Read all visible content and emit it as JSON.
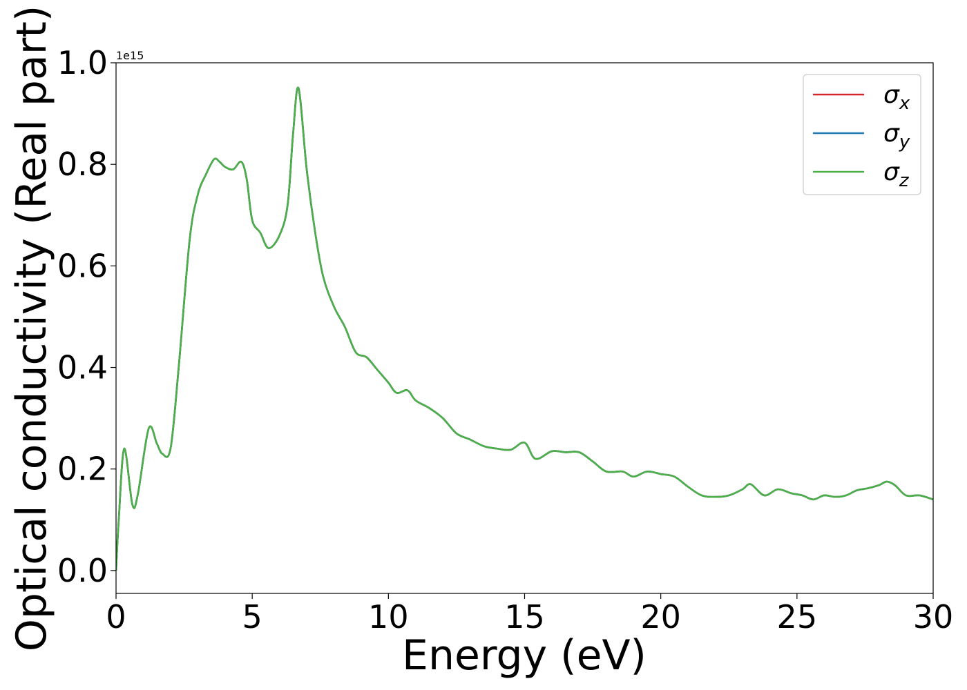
{
  "chart_data": {
    "type": "line",
    "title": "",
    "xlabel": "Energy (eV)",
    "ylabel": "Optical conductivity (Real part)",
    "offset_text": "1e15",
    "xlim": [
      0,
      30
    ],
    "ylim": [
      -0.045,
      1.0
    ],
    "x_ticks": [
      0,
      5,
      10,
      15,
      20,
      25,
      30
    ],
    "y_ticks": [
      0.0,
      0.2,
      0.4,
      0.6,
      0.8,
      1.0
    ],
    "x_tick_labels": [
      "0",
      "5",
      "10",
      "15",
      "20",
      "25",
      "30"
    ],
    "y_tick_labels": [
      "0.0",
      "0.2",
      "0.4",
      "0.6",
      "0.8",
      "1.0"
    ],
    "grid": false,
    "legend_position": "top-right",
    "x": [
      0.0,
      0.1,
      0.3,
      0.6,
      0.8,
      1.2,
      1.5,
      1.7,
      2.0,
      2.3,
      2.7,
      3.0,
      3.3,
      3.6,
      3.8,
      4.0,
      4.3,
      4.6,
      4.8,
      5.0,
      5.3,
      5.6,
      6.0,
      6.3,
      6.5,
      6.7,
      7.0,
      7.3,
      7.6,
      8.0,
      8.4,
      8.8,
      9.2,
      9.6,
      10.0,
      10.3,
      10.7,
      11.0,
      11.5,
      12.0,
      12.5,
      13.0,
      13.5,
      14.0,
      14.5,
      15.0,
      15.4,
      16.0,
      16.5,
      17.0,
      17.5,
      18.0,
      18.6,
      19.0,
      19.5,
      20.0,
      20.5,
      21.0,
      21.5,
      22.0,
      22.5,
      23.0,
      23.3,
      23.8,
      24.3,
      24.8,
      25.2,
      25.6,
      26.0,
      26.4,
      26.8,
      27.2,
      27.6,
      28.0,
      28.3,
      28.6,
      29.0,
      29.5,
      30.0
    ],
    "series": [
      {
        "name": "σx",
        "color": "#d62728",
        "values": [
          0.0,
          0.1,
          0.24,
          0.13,
          0.15,
          0.28,
          0.25,
          0.23,
          0.24,
          0.4,
          0.65,
          0.74,
          0.78,
          0.81,
          0.805,
          0.795,
          0.79,
          0.805,
          0.77,
          0.69,
          0.665,
          0.635,
          0.66,
          0.72,
          0.86,
          0.95,
          0.79,
          0.67,
          0.58,
          0.52,
          0.48,
          0.43,
          0.42,
          0.395,
          0.37,
          0.35,
          0.355,
          0.335,
          0.32,
          0.3,
          0.27,
          0.258,
          0.245,
          0.24,
          0.238,
          0.252,
          0.22,
          0.235,
          0.233,
          0.233,
          0.215,
          0.195,
          0.195,
          0.185,
          0.195,
          0.19,
          0.185,
          0.165,
          0.148,
          0.145,
          0.148,
          0.16,
          0.17,
          0.148,
          0.16,
          0.152,
          0.148,
          0.14,
          0.148,
          0.145,
          0.148,
          0.158,
          0.162,
          0.168,
          0.175,
          0.168,
          0.148,
          0.148,
          0.14
        ]
      },
      {
        "name": "σy",
        "color": "#1f77b4",
        "values": [
          0.0,
          0.1,
          0.24,
          0.13,
          0.15,
          0.28,
          0.25,
          0.23,
          0.24,
          0.4,
          0.65,
          0.74,
          0.78,
          0.81,
          0.805,
          0.795,
          0.79,
          0.805,
          0.77,
          0.69,
          0.665,
          0.635,
          0.66,
          0.72,
          0.86,
          0.95,
          0.79,
          0.67,
          0.58,
          0.52,
          0.48,
          0.43,
          0.42,
          0.395,
          0.37,
          0.35,
          0.355,
          0.335,
          0.32,
          0.3,
          0.27,
          0.258,
          0.245,
          0.24,
          0.238,
          0.252,
          0.22,
          0.235,
          0.233,
          0.233,
          0.215,
          0.195,
          0.195,
          0.185,
          0.195,
          0.19,
          0.185,
          0.165,
          0.148,
          0.145,
          0.148,
          0.16,
          0.17,
          0.148,
          0.16,
          0.152,
          0.148,
          0.14,
          0.148,
          0.145,
          0.148,
          0.158,
          0.162,
          0.168,
          0.175,
          0.168,
          0.148,
          0.148,
          0.14
        ]
      },
      {
        "name": "σz",
        "color": "#4daf4a",
        "values": [
          0.0,
          0.1,
          0.24,
          0.13,
          0.15,
          0.28,
          0.25,
          0.23,
          0.24,
          0.4,
          0.65,
          0.74,
          0.78,
          0.81,
          0.805,
          0.795,
          0.79,
          0.805,
          0.77,
          0.69,
          0.665,
          0.635,
          0.66,
          0.72,
          0.86,
          0.95,
          0.79,
          0.67,
          0.58,
          0.52,
          0.48,
          0.43,
          0.42,
          0.395,
          0.37,
          0.35,
          0.355,
          0.335,
          0.32,
          0.3,
          0.27,
          0.258,
          0.245,
          0.24,
          0.238,
          0.252,
          0.22,
          0.235,
          0.233,
          0.233,
          0.215,
          0.195,
          0.195,
          0.185,
          0.195,
          0.19,
          0.185,
          0.165,
          0.148,
          0.145,
          0.148,
          0.16,
          0.17,
          0.148,
          0.16,
          0.152,
          0.148,
          0.14,
          0.148,
          0.145,
          0.148,
          0.158,
          0.162,
          0.168,
          0.175,
          0.168,
          0.148,
          0.148,
          0.14
        ]
      }
    ],
    "legend": [
      {
        "symbol": "σ",
        "subscript": "x"
      },
      {
        "symbol": "σ",
        "subscript": "y"
      },
      {
        "symbol": "σ",
        "subscript": "z"
      }
    ]
  }
}
